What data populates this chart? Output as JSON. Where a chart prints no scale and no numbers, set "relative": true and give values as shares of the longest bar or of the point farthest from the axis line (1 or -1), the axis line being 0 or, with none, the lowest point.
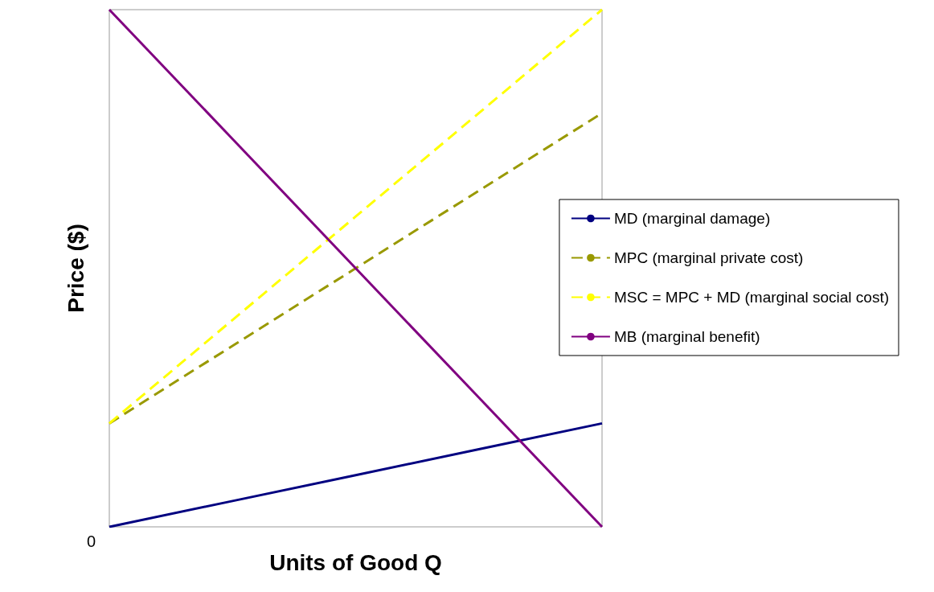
{
  "chart_data": {
    "type": "line",
    "relative": true,
    "xlabel": "Units of Good Q",
    "ylabel": "Price ($)",
    "categories": [
      null,
      null,
      null,
      null,
      null
    ],
    "series": [
      {
        "name": "MD (marginal damage)",
        "color": "#000080",
        "values": [
          0,
          0.05,
          0.1,
          0.15,
          0.2
        ],
        "line_style": "solid"
      },
      {
        "name": "MPC (marginal private cost)",
        "color": "#999900",
        "values": [
          0.2,
          0.35,
          0.5,
          0.65,
          0.8
        ],
        "line_style": "dashed"
      },
      {
        "name": "MSC = MPC + MD (marginal social cost)",
        "color": "#ffff00",
        "values": [
          0.2,
          0.4,
          0.6,
          0.8,
          1.0
        ],
        "line_style": "dashed"
      },
      {
        "name": "MB (marginal benefit)",
        "color": "#800080",
        "values": [
          1,
          0.75,
          0.5,
          0.25,
          0
        ],
        "line_style": "solid"
      }
    ],
    "annotations": [
      "0"
    ],
    "marker": "none",
    "grid": false,
    "legend": "right"
  }
}
